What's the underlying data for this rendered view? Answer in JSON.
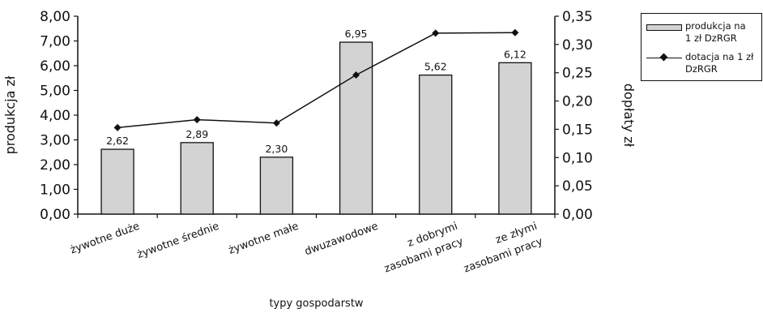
{
  "chart_data": {
    "type": "bar+line",
    "categories": [
      [
        "żywotne duże"
      ],
      [
        "żywotne średnie"
      ],
      [
        "żywotne małe"
      ],
      [
        "dwuzawodowe"
      ],
      [
        "z dobrymi",
        "zasobami pracy"
      ],
      [
        "ze złymi",
        "zasobami pracy"
      ]
    ],
    "series": [
      {
        "name": "produkcja na 1 zł DzRGR",
        "type": "bar",
        "axis": "left",
        "values": [
          2.62,
          2.89,
          2.3,
          6.95,
          5.62,
          6.12
        ],
        "labels": [
          "2,62",
          "2,89",
          "2,30",
          "6,95",
          "5,62",
          "6,12"
        ],
        "color": "#d3d3d3"
      },
      {
        "name": "dotacja na 1 zł DzRGR",
        "type": "line",
        "axis": "right",
        "values": [
          0.153,
          0.167,
          0.161,
          0.246,
          0.32,
          0.321
        ],
        "color": "#111111"
      }
    ],
    "xlabel": "typy gospodarstw",
    "ylabel": "produkcja zł",
    "y2label": "dopłaty zł",
    "ylim": [
      0,
      8
    ],
    "y2lim": [
      0,
      0.35
    ],
    "yticks": [
      "0,00",
      "1,00",
      "2,00",
      "3,00",
      "4,00",
      "5,00",
      "6,00",
      "7,00",
      "8,00"
    ],
    "y2ticks": [
      "0,00",
      "0,05",
      "0,10",
      "0,15",
      "0,20",
      "0,25",
      "0,30",
      "0,35"
    ],
    "legend_position": "top-right",
    "grid": false
  },
  "legend": {
    "bar_label": [
      "produkcja na",
      "1 zł DzRGR"
    ],
    "line_label": [
      "dotacja na 1 zł",
      "DzRGR"
    ]
  }
}
